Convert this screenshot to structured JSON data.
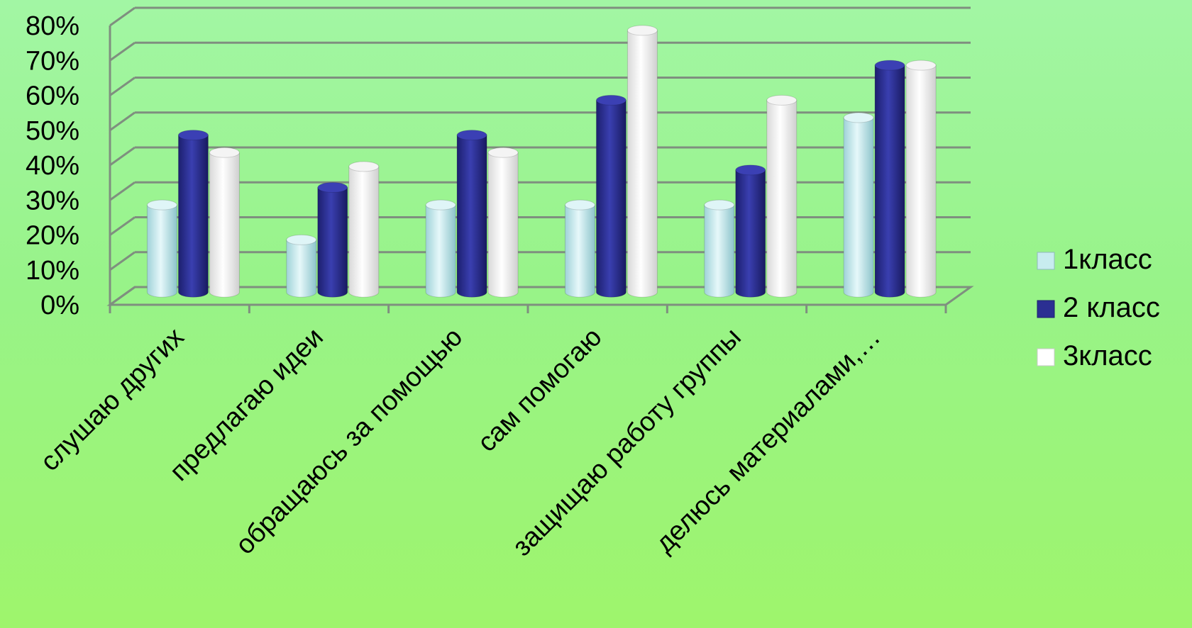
{
  "chart_data": {
    "type": "bar",
    "title": "",
    "xlabel": "",
    "ylabel": "",
    "ylim": [
      0,
      0.8
    ],
    "yticks": [
      "0%",
      "10%",
      "20%",
      "30%",
      "40%",
      "50%",
      "60%",
      "70%",
      "80%"
    ],
    "categories": [
      "слушаю других",
      "предлагаю идеи",
      "обращаюсь за помощью",
      "сам помогаю",
      "защищаю работу группы",
      "делюсь материалами,…"
    ],
    "series": [
      {
        "name": "1класс",
        "values": [
          0.25,
          0.15,
          0.25,
          0.25,
          0.25,
          0.5
        ],
        "color": "#c8ecef"
      },
      {
        "name": "2 класс",
        "values": [
          0.45,
          0.3,
          0.45,
          0.55,
          0.35,
          0.65
        ],
        "color": "#2b2f92"
      },
      {
        "name": "3класс",
        "values": [
          0.4,
          0.36,
          0.4,
          0.75,
          0.55,
          0.65
        ],
        "color": "#ffffff"
      }
    ],
    "grid": true,
    "legend_position": "right",
    "style": "3d-cylinder"
  }
}
